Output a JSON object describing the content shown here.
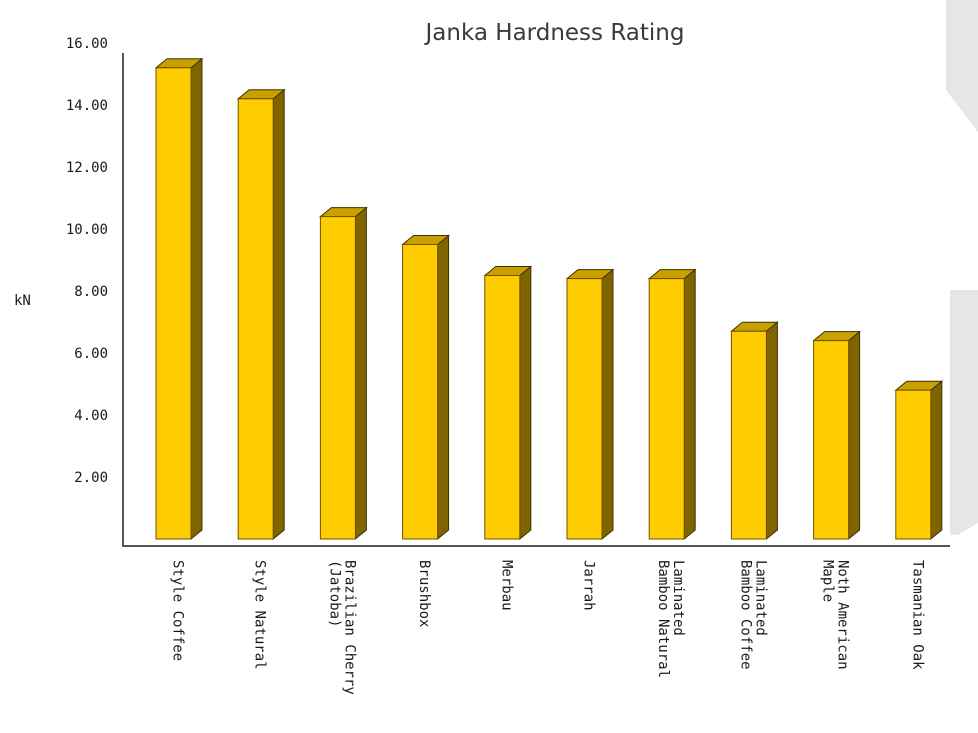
{
  "chart_data": {
    "type": "bar",
    "title": "Janka Hardness Rating",
    "xlabel": "",
    "ylabel": "kN",
    "ylim": [
      0,
      16
    ],
    "yticks": [
      "2.00",
      "4.00",
      "6.00",
      "8.00",
      "10.00",
      "12.00",
      "14.00",
      "16.00"
    ],
    "categories": [
      [
        "Style Coffee"
      ],
      [
        "Style Natural"
      ],
      [
        "Brazilian Cherry",
        "(Jatoba)"
      ],
      [
        "Brushbox"
      ],
      [
        "Merbau"
      ],
      [
        "Jarrah"
      ],
      [
        "Laminated",
        "Bamboo Natural"
      ],
      [
        "Laminated",
        "Bamboo Coffee"
      ],
      [
        "Noth American",
        "Maple"
      ],
      [
        "Tasmanian Oak"
      ]
    ],
    "values": [
      15.2,
      14.2,
      10.4,
      9.5,
      8.5,
      8.4,
      8.4,
      6.7,
      6.4,
      4.8
    ],
    "grid": false,
    "legend": "none",
    "style": "3d",
    "colors": {
      "bar_front": "#ffcc00",
      "bar_side": "#7f6400",
      "bar_top": "#c9a000",
      "axis": "#555555"
    }
  }
}
